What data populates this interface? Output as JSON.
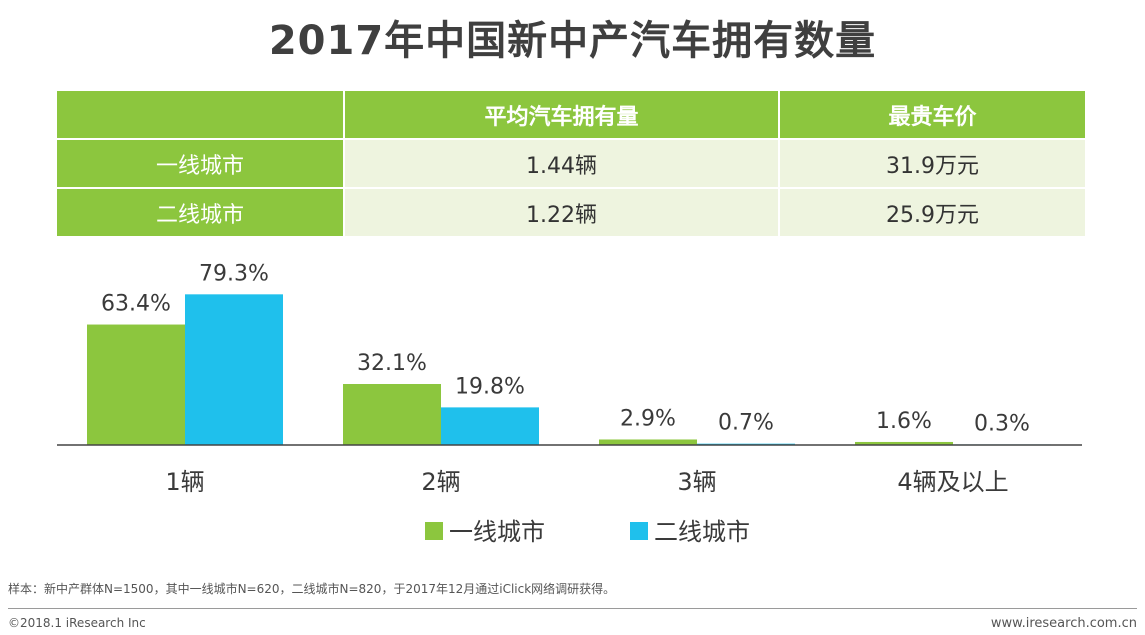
{
  "title": "2017年中国新中产汽车拥有数量",
  "table": {
    "headers": [
      "",
      "平均汽车拥有量",
      "最贵车价"
    ],
    "rows": [
      {
        "label": "一线城市",
        "avg": "1.44辆",
        "price": "31.9万元"
      },
      {
        "label": "二线城市",
        "avg": "1.22辆",
        "price": "25.9万元"
      }
    ]
  },
  "chart_data": {
    "type": "bar",
    "categories": [
      "1辆",
      "2辆",
      "3辆",
      "4辆及以上"
    ],
    "series": [
      {
        "name": "一线城市",
        "values": [
          63.4,
          32.1,
          2.9,
          1.6
        ],
        "labels": [
          "63.4%",
          "32.1%",
          "2.9%",
          "1.6%"
        ],
        "color": "#8cc63e"
      },
      {
        "name": "二线城市",
        "values": [
          79.3,
          19.8,
          0.7,
          0.3
        ],
        "labels": [
          "79.3%",
          "19.8%",
          "0.7%",
          "0.3%"
        ],
        "color": "#1fc0ec"
      }
    ],
    "ylim": [
      0,
      80
    ],
    "legend": "bottom-center",
    "axis_color": "#444444"
  },
  "footer": {
    "note": "样本：新中产群体N=1500，其中一线城市N=620，二线城市N=820，于2017年12月通过iClick网络调研获得。",
    "copyright": "©2018.1 iResearch Inc",
    "site": "www.iresearch.com.cn"
  }
}
